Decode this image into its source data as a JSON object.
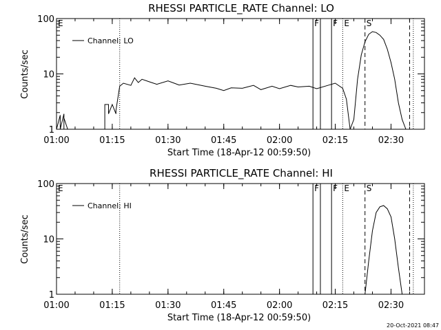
{
  "footer": {
    "timestamp": "20-Oct-2021 08:47"
  },
  "chart_data": [
    {
      "type": "line",
      "title": "RHESSI PARTICLE_RATE Channel: LO",
      "xlabel": "Start Time (18-Apr-12 00:59:50)",
      "ylabel": "Counts/sec",
      "y_scale": "log",
      "ylim": [
        1,
        100
      ],
      "xlim": [
        "01:00",
        "02:39"
      ],
      "x_tick_labels": [
        "01:00",
        "01:15",
        "01:30",
        "01:45",
        "02:00",
        "02:15",
        "02:30"
      ],
      "y_tick_labels": [
        "1",
        "10",
        "100"
      ],
      "legend": {
        "entries": [
          "Channel: LO"
        ],
        "position": "top-left"
      },
      "series": [
        {
          "name": "Channel: LO",
          "x": [
            "01:00",
            "01:00",
            "01:01",
            "01:01",
            "01:02",
            "01:02",
            "01:02",
            "01:03",
            "01:04",
            "01:13",
            "01:13",
            "01:14",
            "01:14",
            "01:15",
            "01:16",
            "01:16",
            "01:17",
            "01:18",
            "01:20",
            "01:21",
            "01:22",
            "01:23",
            "01:25",
            "01:27",
            "01:30",
            "01:33",
            "01:36",
            "01:40",
            "01:43",
            "01:45",
            "01:47",
            "01:50",
            "01:53",
            "01:55",
            "01:58",
            "02:00",
            "02:03",
            "02:05",
            "02:08",
            "02:10",
            "02:13",
            "02:15",
            "02:17",
            "02:18",
            "02:19",
            "02:20",
            "02:21",
            "02:22",
            "02:23",
            "02:24",
            "02:25",
            "02:26",
            "02:27",
            "02:28",
            "02:29",
            "02:30",
            "02:31",
            "02:32",
            "02:33",
            "02:34"
          ],
          "y": [
            1.9,
            1,
            1.8,
            1,
            1.9,
            1,
            1.6,
            1,
            1,
            1,
            2.8,
            2.8,
            1.9,
            2.8,
            1.9,
            2.2,
            6,
            6.8,
            6.2,
            8.5,
            7,
            8,
            7.2,
            6.5,
            7.5,
            6.3,
            6.8,
            6,
            5.5,
            5,
            5.6,
            5.5,
            6.2,
            5.2,
            6,
            5.4,
            6.2,
            5.8,
            6,
            5.4,
            6.2,
            6.8,
            5.5,
            3.5,
            1,
            1.5,
            8,
            22,
            38,
            52,
            58,
            56,
            50,
            42,
            28,
            16,
            8,
            3,
            1.5,
            1
          ]
        }
      ],
      "annotations": [
        {
          "x": "01:17",
          "line": "dotted",
          "label": ""
        },
        {
          "x": "02:09",
          "line": "solid",
          "label": "F"
        },
        {
          "x": "02:11",
          "line": "solid",
          "label": ""
        },
        {
          "x": "02:14",
          "line": "solid",
          "label": "F"
        },
        {
          "x": "02:17",
          "line": "dotted",
          "label": "E"
        },
        {
          "x": "02:23",
          "line": "dashed",
          "label": "S"
        },
        {
          "x": "02:35",
          "line": "dashed",
          "label": ""
        },
        {
          "x": "02:36",
          "line": "dotted",
          "label": ""
        }
      ],
      "corner_label": "E"
    },
    {
      "type": "line",
      "title": "RHESSI PARTICLE_RATE Channel: HI",
      "xlabel": "Start Time (18-Apr-12 00:59:50)",
      "ylabel": "Counts/sec",
      "y_scale": "log",
      "ylim": [
        1,
        100
      ],
      "xlim": [
        "01:00",
        "02:39"
      ],
      "x_tick_labels": [
        "01:00",
        "01:15",
        "01:30",
        "01:45",
        "02:00",
        "02:15",
        "02:30"
      ],
      "y_tick_labels": [
        "1",
        "10",
        "100"
      ],
      "legend": {
        "entries": [
          "Channel: HI"
        ],
        "position": "top-left"
      },
      "series": [
        {
          "name": "Channel: HI",
          "x": [
            "02:23",
            "02:24",
            "02:25",
            "02:26",
            "02:27",
            "02:28",
            "02:29",
            "02:30",
            "02:31",
            "02:32",
            "02:33"
          ],
          "y": [
            1,
            4,
            14,
            30,
            38,
            40,
            35,
            25,
            10,
            3,
            1
          ]
        }
      ],
      "annotations": [
        {
          "x": "01:17",
          "line": "dotted",
          "label": ""
        },
        {
          "x": "02:09",
          "line": "solid",
          "label": "F"
        },
        {
          "x": "02:11",
          "line": "solid",
          "label": ""
        },
        {
          "x": "02:14",
          "line": "solid",
          "label": "F"
        },
        {
          "x": "02:17",
          "line": "dotted",
          "label": "E"
        },
        {
          "x": "02:23",
          "line": "dashed",
          "label": "S"
        },
        {
          "x": "02:35",
          "line": "dashed",
          "label": ""
        },
        {
          "x": "02:36",
          "line": "dotted",
          "label": ""
        }
      ],
      "corner_label": "E"
    }
  ]
}
